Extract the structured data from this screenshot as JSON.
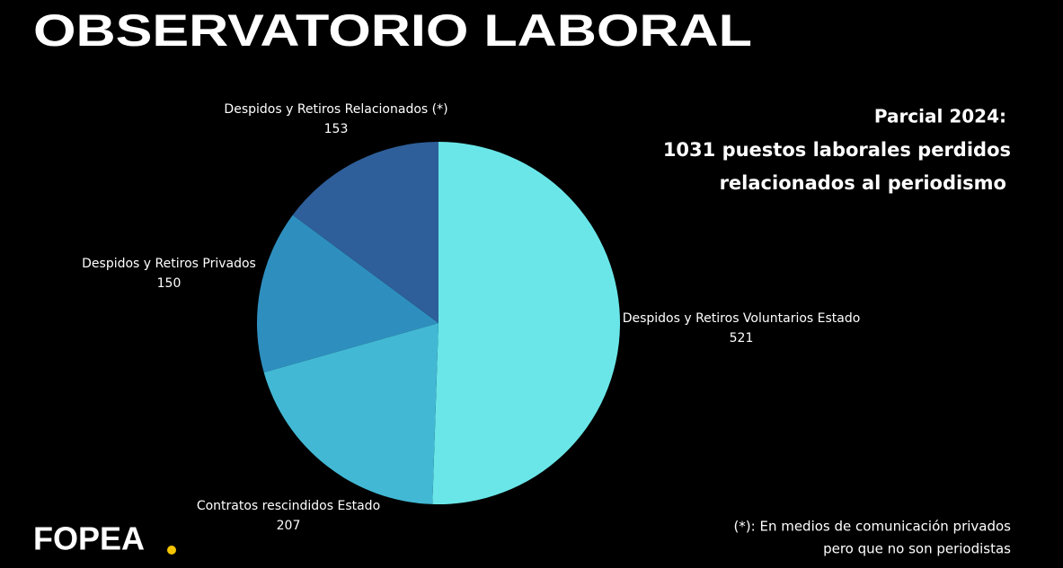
{
  "header": {
    "title": "OBSERVATORIO LABORAL"
  },
  "chart_data": {
    "type": "pie",
    "categories": [
      "Despidos y Retiros Voluntarios Estado",
      "Contratos rescindidos Estado",
      "Despidos y Retiros Privados",
      "Despidos y Retiros Relacionados (*)"
    ],
    "values": [
      521,
      207,
      150,
      153
    ],
    "colors": [
      "#6ae6e8",
      "#42b8d4",
      "#2e8fbf",
      "#2e5f9a"
    ]
  },
  "side_note": {
    "heading": "Parcial 2024:",
    "lines": [
      "1031 puestos laborales perdidos",
      "relacionados al periodismo"
    ]
  },
  "footnote": [
    "(*): En medios de comunicación privados",
    "pero que no son periodistas"
  ],
  "logo": "FOPEA"
}
